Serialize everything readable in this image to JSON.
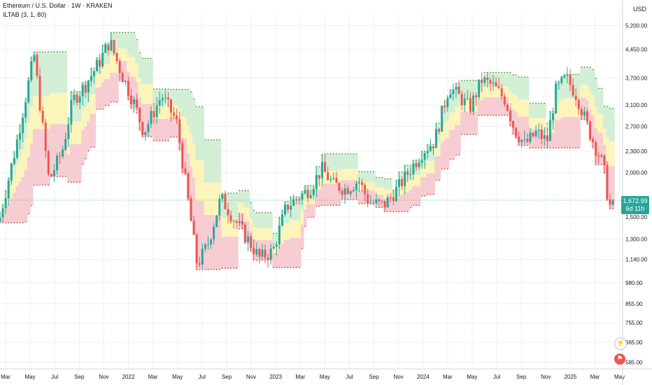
{
  "header": {
    "title": "Ethereum / U.S. Dollar · 1W · KRAKEN",
    "indicator": "ILTAB (3, 1, 80)"
  },
  "axis": {
    "currency": "USD"
  },
  "price_tag": {
    "price": "1,672.99",
    "countdown": "6d 11h"
  },
  "colors": {
    "up": "#26a69a",
    "down": "#ef5350",
    "zone_red": "#f5c6cb",
    "zone_yellow": "#fbf3b0",
    "zone_green": "#cdeccf"
  },
  "icons": [
    "lightning-icon",
    "flag-icon"
  ],
  "chart_data": {
    "type": "candlestick",
    "y_scale": "log",
    "ylim": [
      560,
      5600
    ],
    "y_ticks": [
      5200,
      4450,
      3700,
      3100,
      2700,
      2300,
      2000,
      1500,
      1300,
      1140,
      980,
      855,
      755,
      665,
      585
    ],
    "y_tick_labels": [
      "5,200.00",
      "4,450.00",
      "3,700.00",
      "3,100.00",
      "2,700.00",
      "2,300.00",
      "2,000.00",
      "1,500.00",
      "1,300.00",
      "1,140.00",
      "980.00",
      "855.00",
      "755.00",
      "665.00",
      "585.00"
    ],
    "x_labels": [
      "Mar",
      "May",
      "Jul",
      "Sep",
      "Nov",
      "2022",
      "Mar",
      "May",
      "Jul",
      "Sep",
      "Nov",
      "2023",
      "Mar",
      "May",
      "Jul",
      "Sep",
      "Nov",
      "2024",
      "Mar",
      "May",
      "Jul",
      "Sep",
      "Nov",
      "2025",
      "Mar",
      "May"
    ],
    "last_price": 1672.99,
    "anchors": [
      [
        2021.13,
        1500
      ],
      [
        2021.24,
        2400
      ],
      [
        2021.36,
        4300
      ],
      [
        2021.46,
        1900
      ],
      [
        2021.55,
        2300
      ],
      [
        2021.62,
        3200
      ],
      [
        2021.7,
        3500
      ],
      [
        2021.8,
        4100
      ],
      [
        2021.87,
        4700
      ],
      [
        2021.95,
        3800
      ],
      [
        2022.04,
        3100
      ],
      [
        2022.1,
        2600
      ],
      [
        2022.22,
        3300
      ],
      [
        2022.32,
        2800
      ],
      [
        2022.38,
        1900
      ],
      [
        2022.46,
        1100
      ],
      [
        2022.53,
        1250
      ],
      [
        2022.62,
        1700
      ],
      [
        2022.7,
        1500
      ],
      [
        2022.8,
        1300
      ],
      [
        2022.88,
        1150
      ],
      [
        2022.97,
        1200
      ],
      [
        2023.06,
        1600
      ],
      [
        2023.14,
        1700
      ],
      [
        2023.22,
        1800
      ],
      [
        2023.3,
        2050
      ],
      [
        2023.38,
        1850
      ],
      [
        2023.46,
        1800
      ],
      [
        2023.55,
        1900
      ],
      [
        2023.62,
        1650
      ],
      [
        2023.72,
        1620
      ],
      [
        2023.81,
        1800
      ],
      [
        2023.9,
        2050
      ],
      [
        2023.98,
        2300
      ],
      [
        2024.06,
        2450
      ],
      [
        2024.16,
        3500
      ],
      [
        2024.22,
        3300
      ],
      [
        2024.3,
        3050
      ],
      [
        2024.38,
        3650
      ],
      [
        2024.46,
        3500
      ],
      [
        2024.54,
        3200
      ],
      [
        2024.6,
        2650
      ],
      [
        2024.67,
        2400
      ],
      [
        2024.75,
        2600
      ],
      [
        2024.82,
        2450
      ],
      [
        2024.88,
        3400
      ],
      [
        2024.95,
        3700
      ],
      [
        2025.02,
        3300
      ],
      [
        2025.08,
        2800
      ],
      [
        2025.14,
        2400
      ],
      [
        2025.2,
        2100
      ],
      [
        2025.24,
        1600
      ],
      [
        2025.27,
        1673
      ]
    ]
  }
}
